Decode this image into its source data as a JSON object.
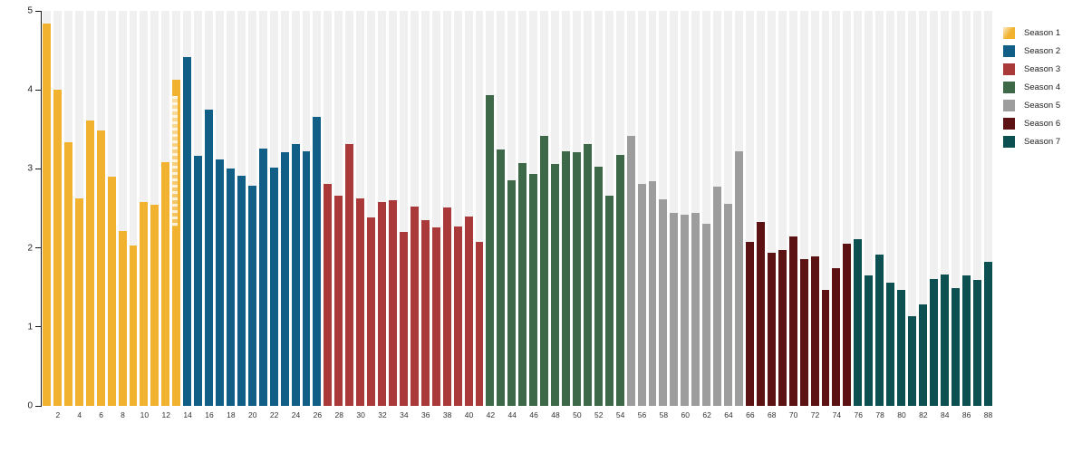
{
  "accent_colors": {
    "axis": "#1a1a1a",
    "background_stripe": "#f0f0f0",
    "tick_text": "#333333"
  },
  "chart_data": {
    "type": "bar",
    "title": "",
    "xlabel": "",
    "ylabel": "",
    "ylim": [
      0,
      5
    ],
    "ytick_labels": [
      "0",
      "1",
      "2",
      "3",
      "4",
      "5"
    ],
    "xtick_labels": [
      "2",
      "4",
      "6",
      "8",
      "10",
      "12",
      "14",
      "16",
      "18",
      "20",
      "22",
      "24",
      "26",
      "28",
      "30",
      "32",
      "34",
      "36",
      "38",
      "40",
      "42",
      "44",
      "46",
      "48",
      "50",
      "52",
      "54",
      "56",
      "58",
      "60",
      "62",
      "64",
      "66",
      "68",
      "70",
      "72",
      "74",
      "76",
      "80",
      "82",
      "84",
      "86",
      "88"
    ],
    "xtick_step": 2,
    "episodes_total": 88,
    "grid": "background-stripes-per-bar",
    "legend_position": "right-outside",
    "special": {
      "faded_bar_episode": 13
    },
    "seasons": [
      {
        "name": "Season 1",
        "color": "#F1B22F",
        "start_episode": 1,
        "values": [
          4.84,
          4.0,
          3.34,
          2.63,
          3.61,
          3.49,
          2.9,
          2.21,
          2.03,
          2.58,
          2.55,
          3.08,
          4.13
        ]
      },
      {
        "name": "Season 2",
        "color": "#115F87",
        "start_episode": 14,
        "values": [
          4.42,
          3.17,
          3.75,
          3.12,
          3.0,
          2.91,
          2.79,
          3.26,
          3.02,
          3.21,
          3.31,
          3.22,
          3.66
        ]
      },
      {
        "name": "Season 3",
        "color": "#AA3939",
        "start_episode": 27,
        "values": [
          2.81,
          2.66,
          3.32,
          2.63,
          2.39,
          2.58,
          2.6,
          2.2,
          2.52,
          2.35,
          2.26,
          2.51,
          2.27,
          2.4,
          2.08
        ]
      },
      {
        "name": "Season 4",
        "color": "#3E6949",
        "start_episode": 42,
        "values": [
          3.93,
          3.25,
          2.86,
          3.07,
          2.94,
          3.42,
          3.06,
          3.22,
          3.21,
          3.32,
          3.03,
          2.66,
          3.18
        ]
      },
      {
        "name": "Season 5",
        "color": "#9D9D9D",
        "start_episode": 55,
        "values": [
          3.42,
          2.81,
          2.84,
          2.61,
          2.44,
          2.42,
          2.44,
          2.31,
          2.77,
          2.56,
          3.22
        ]
      },
      {
        "name": "Season 6",
        "color": "#5C1212",
        "start_episode": 66,
        "values": [
          2.08,
          2.33,
          1.94,
          1.97,
          2.14,
          1.86,
          1.89,
          1.47,
          1.74,
          2.05
        ]
      },
      {
        "name": "Season 7",
        "color": "#0C5051",
        "start_episode": 76,
        "values": [
          2.11,
          1.65,
          1.92,
          1.56,
          1.47,
          1.14,
          1.29,
          1.6,
          1.66,
          1.49,
          1.65,
          1.59,
          1.82
        ]
      }
    ]
  }
}
